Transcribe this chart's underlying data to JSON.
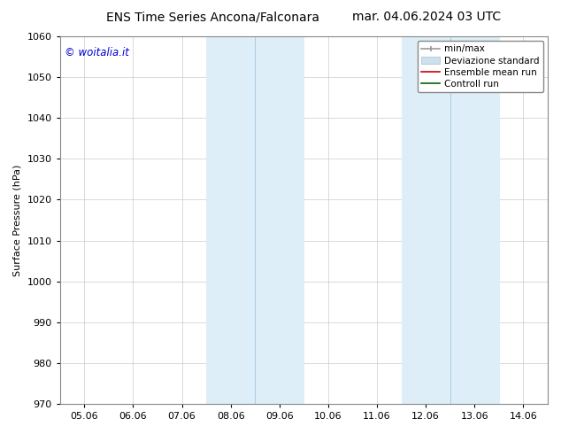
{
  "title_left": "ENS Time Series Ancona/Falconara",
  "title_right": "mar. 04.06.2024 03 UTC",
  "ylabel": "Surface Pressure (hPa)",
  "ylim": [
    970,
    1060
  ],
  "yticks": [
    970,
    980,
    990,
    1000,
    1010,
    1020,
    1030,
    1040,
    1050,
    1060
  ],
  "x_tick_labels": [
    "05.06",
    "06.06",
    "07.06",
    "08.06",
    "09.06",
    "10.06",
    "11.06",
    "12.06",
    "13.06",
    "14.06"
  ],
  "shaded_color": "#ddeef8",
  "shaded_edge_color": "#aaccdd",
  "band_ranges": [
    [
      3,
      5
    ],
    [
      7,
      9
    ]
  ],
  "band_dividers": [
    4,
    8
  ],
  "copyright_text": "© woitalia.it",
  "copyright_color": "#0000cc",
  "background_color": "#ffffff",
  "n_xticks": 10,
  "title_fontsize": 10,
  "label_fontsize": 8,
  "tick_fontsize": 8,
  "legend_fontsize": 7.5
}
